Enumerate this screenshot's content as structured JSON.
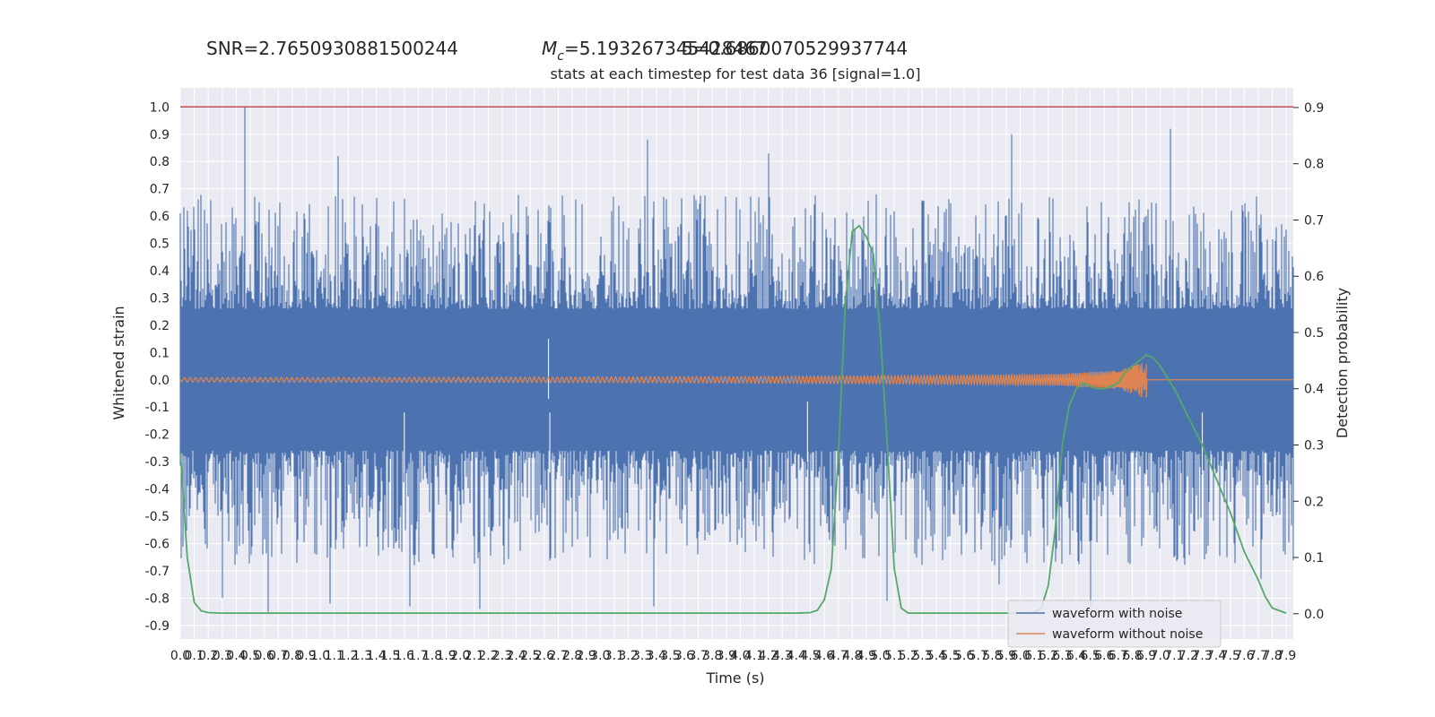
{
  "annotations": {
    "snr": "SNR=2.7650930881500244",
    "mc_symbol": "M",
    "mc_subscript": "c",
    "mc_value": "=5.193267345428467",
    "overlap": "5=0.6860070529937744"
  },
  "chart_data": {
    "type": "line",
    "title": "stats at each timestep for test data 36 [signal=1.0]",
    "xlabel": "Time (s)",
    "ylabel": "Whitened strain",
    "y2label": "Detection probability",
    "xlim": [
      0.0,
      7.95
    ],
    "ylim": [
      -0.95,
      1.07
    ],
    "y2lim": [
      -0.045,
      0.935
    ],
    "x_ticks": [
      "0.0",
      "0.1",
      "0.2",
      "0.3",
      "0.4",
      "0.5",
      "0.6",
      "0.7",
      "0.8",
      "0.9",
      "1.0",
      "1.1",
      "1.2",
      "1.3",
      "1.4",
      "1.5",
      "1.6",
      "1.7",
      "1.8",
      "1.9",
      "2.0",
      "2.1",
      "2.2",
      "2.3",
      "2.4",
      "2.5",
      "2.6",
      "2.7",
      "2.8",
      "2.9",
      "3.0",
      "3.1",
      "3.2",
      "3.3",
      "3.4",
      "3.5",
      "3.6",
      "3.7",
      "3.8",
      "3.9",
      "4.0",
      "4.1",
      "4.2",
      "4.3",
      "4.4",
      "4.5",
      "4.6",
      "4.7",
      "4.8",
      "4.9",
      "5.0",
      "5.1",
      "5.2",
      "5.3",
      "5.4",
      "5.5",
      "5.6",
      "5.7",
      "5.8",
      "5.9",
      "6.0",
      "6.1",
      "6.2",
      "6.3",
      "6.4",
      "6.5",
      "6.6",
      "6.7",
      "6.8",
      "6.9",
      "7.0",
      "7.1",
      "7.2",
      "7.3",
      "7.4",
      "7.5",
      "7.6",
      "7.7",
      "7.8",
      "7.9"
    ],
    "y_ticks": [
      "1.0",
      "0.9",
      "0.8",
      "0.7",
      "0.6",
      "0.5",
      "0.4",
      "0.3",
      "0.2",
      "0.1",
      "0.0",
      "-0.1",
      "-0.2",
      "-0.3",
      "-0.4",
      "-0.5",
      "-0.6",
      "-0.7",
      "-0.8",
      "-0.9"
    ],
    "y2_ticks": [
      "0.9",
      "0.8",
      "0.7",
      "0.6",
      "0.5",
      "0.4",
      "0.3",
      "0.2",
      "0.1",
      "0.0"
    ],
    "threshold_line": {
      "y": 1.0,
      "color": "#c44e52"
    },
    "legend": {
      "placement": "bottom-right"
    },
    "grid": true,
    "series": [
      {
        "name": "waveform with noise",
        "color": "#4c72b0",
        "description_envelope": "dense noise, |y| mostly within 0.3-0.6",
        "spikes": [
          {
            "x": 0.0,
            "y": 0.61
          },
          {
            "x": 0.05,
            "y": 0.62
          },
          {
            "x": 0.13,
            "y": 0.66
          },
          {
            "x": 0.3,
            "y": -0.8
          },
          {
            "x": 0.46,
            "y": 1.0
          },
          {
            "x": 0.63,
            "y": -0.85
          },
          {
            "x": 1.13,
            "y": 0.82
          },
          {
            "x": 1.07,
            "y": -0.82
          },
          {
            "x": 1.64,
            "y": -0.83
          },
          {
            "x": 2.14,
            "y": -0.84
          },
          {
            "x": 3.34,
            "y": 0.88
          },
          {
            "x": 3.38,
            "y": -0.83
          },
          {
            "x": 4.2,
            "y": 0.83
          },
          {
            "x": 5.05,
            "y": -0.81
          },
          {
            "x": 5.94,
            "y": 0.9
          },
          {
            "x": 5.85,
            "y": -0.75
          },
          {
            "x": 6.5,
            "y": -0.83
          },
          {
            "x": 7.07,
            "y": 0.92
          },
          {
            "x": 7.72,
            "y": -0.73
          },
          {
            "x": 7.9,
            "y": 0.55
          }
        ],
        "gaps": [
          {
            "x": 1.6,
            "y": -0.12
          },
          {
            "x": 2.64,
            "y": -0.12
          },
          {
            "x": 4.48,
            "y": -0.08
          },
          {
            "x": 7.3,
            "y": -0.12
          },
          {
            "x": 2.63,
            "y": 0.15
          }
        ]
      },
      {
        "name": "waveform without noise",
        "color": "#dd8452",
        "description": "chirp: small oscillation, amplitude grows until merger near 6.9 s, then flat zero",
        "amplitude_points": [
          {
            "x": 0.0,
            "y": 0.008
          },
          {
            "x": 2.0,
            "y": 0.009
          },
          {
            "x": 4.0,
            "y": 0.012
          },
          {
            "x": 5.5,
            "y": 0.016
          },
          {
            "x": 6.3,
            "y": 0.022
          },
          {
            "x": 6.7,
            "y": 0.035
          },
          {
            "x": 6.85,
            "y": 0.06
          },
          {
            "x": 6.9,
            "y": 0.075
          }
        ],
        "merger_time": 6.9
      },
      {
        "name": "detection probability",
        "color": "#55a868",
        "axis": "y2",
        "x": [
          0.0,
          0.05,
          0.1,
          0.15,
          0.2,
          0.3,
          0.4,
          0.5,
          1.0,
          2.0,
          3.0,
          4.0,
          4.4,
          4.5,
          4.55,
          4.6,
          4.65,
          4.7,
          4.75,
          4.8,
          4.85,
          4.9,
          4.95,
          5.0,
          5.05,
          5.1,
          5.15,
          5.2,
          5.25,
          5.3,
          5.35,
          5.4,
          5.5,
          5.8,
          6.0,
          6.1,
          6.15,
          6.2,
          6.25,
          6.3,
          6.35,
          6.4,
          6.45,
          6.5,
          6.55,
          6.6,
          6.7,
          6.75,
          6.8,
          6.85,
          6.9,
          6.95,
          7.0,
          7.1,
          7.2,
          7.3,
          7.4,
          7.5,
          7.6,
          7.7,
          7.75,
          7.8,
          7.9
        ],
        "y": [
          0.29,
          0.1,
          0.02,
          0.005,
          0.002,
          0.001,
          0.001,
          0.001,
          0.001,
          0.001,
          0.001,
          0.001,
          0.001,
          0.002,
          0.006,
          0.025,
          0.08,
          0.28,
          0.55,
          0.68,
          0.69,
          0.67,
          0.64,
          0.5,
          0.3,
          0.08,
          0.01,
          0.001,
          0.001,
          0.001,
          0.001,
          0.001,
          0.001,
          0.001,
          0.001,
          0.002,
          0.01,
          0.05,
          0.15,
          0.3,
          0.37,
          0.4,
          0.41,
          0.405,
          0.4,
          0.4,
          0.41,
          0.43,
          0.44,
          0.45,
          0.46,
          0.455,
          0.44,
          0.4,
          0.35,
          0.3,
          0.24,
          0.18,
          0.11,
          0.06,
          0.03,
          0.01,
          0.001
        ]
      }
    ]
  }
}
